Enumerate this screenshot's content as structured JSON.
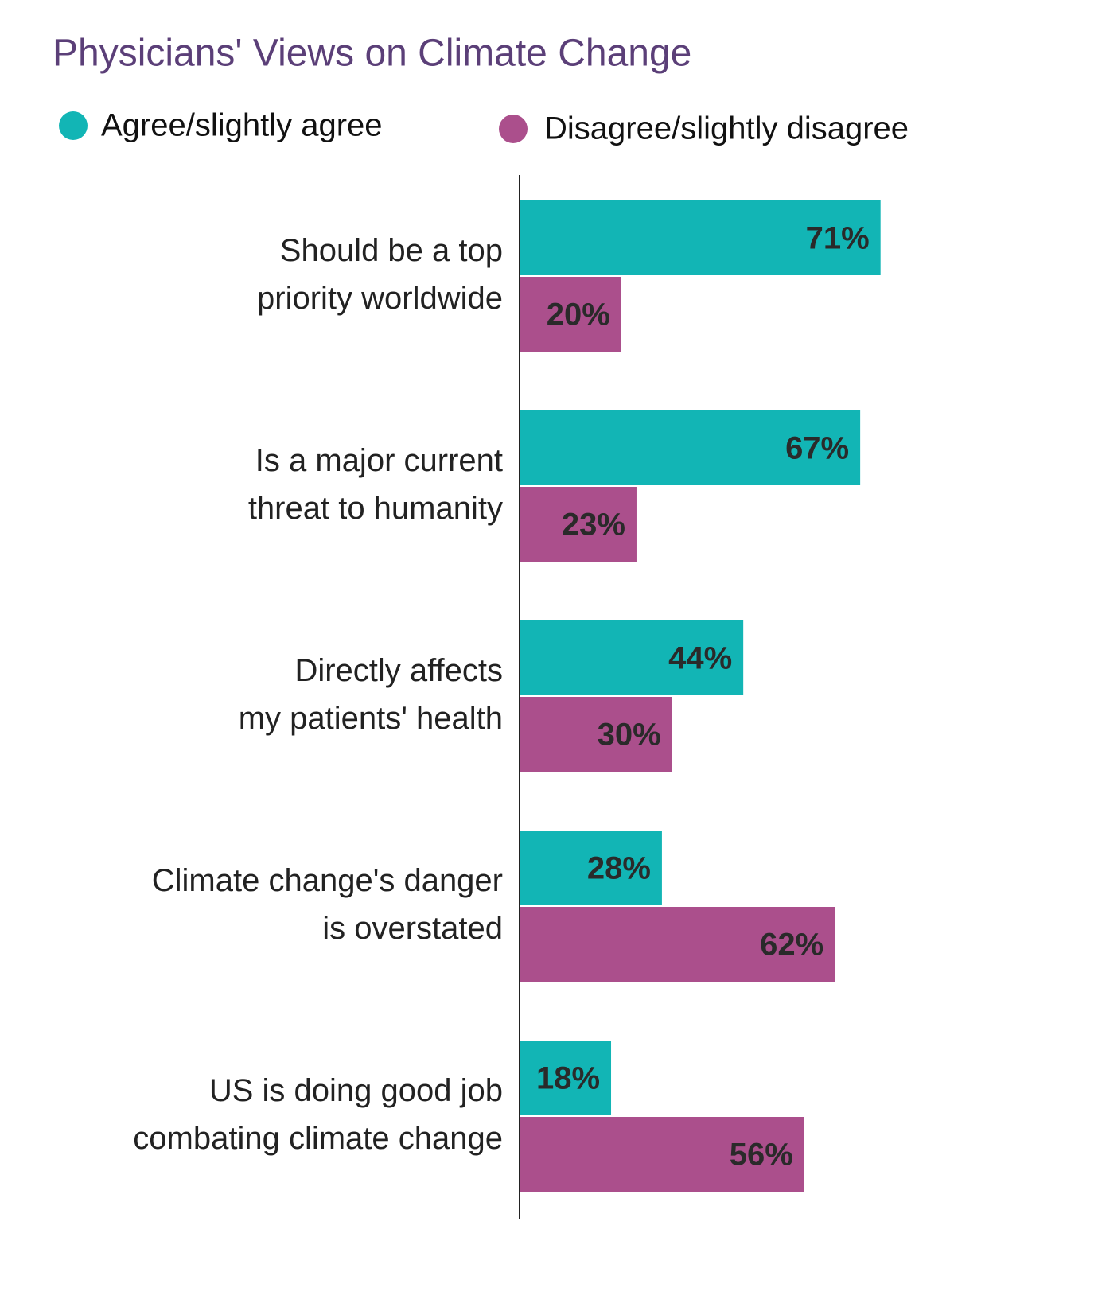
{
  "chart_data": {
    "type": "bar",
    "orientation": "horizontal",
    "title": "Physicians' Views on Climate Change",
    "categories": [
      "Should be a top\npriority worldwide",
      "Is a major current\nthreat to humanity",
      "Directly affects\nmy patients' health",
      "Climate change's danger\nis overstated",
      "US is doing good job\ncombating climate change"
    ],
    "series": [
      {
        "name": "Agree/slightly agree",
        "color": "#12b5b5",
        "values": [
          71,
          67,
          44,
          28,
          18
        ],
        "value_labels": [
          "71%",
          "67%",
          "44%",
          "28%",
          "18%"
        ]
      },
      {
        "name": "Disagree/slightly disagree",
        "color": "#ab4f8c",
        "values": [
          20,
          23,
          30,
          62,
          56
        ],
        "value_labels": [
          "20%",
          "23%",
          "30%",
          "62%",
          "56%"
        ]
      }
    ],
    "xlim": [
      0,
      100
    ]
  }
}
